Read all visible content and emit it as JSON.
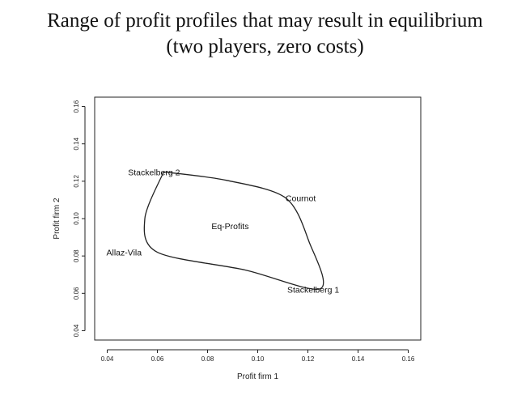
{
  "title_line1": "Range of profit profiles that may result in equilibrium",
  "title_line2": "(two players, zero costs)",
  "chart_data": {
    "type": "line",
    "title": "Range of profit profiles that may result in equilibrium (two players, zero costs)",
    "xlabel": "Profit firm 1",
    "ylabel": "Profit firm 2",
    "xlim": [
      0.035,
      0.165
    ],
    "ylim": [
      0.035,
      0.165
    ],
    "xticks": [
      "0.04",
      "0.06",
      "0.08",
      "0.10",
      "0.12",
      "0.14",
      "0.16"
    ],
    "yticks": [
      "0.04",
      "0.06",
      "0.08",
      "0.10",
      "0.12",
      "0.14",
      "0.16"
    ],
    "xtick_values": [
      0.04,
      0.06,
      0.08,
      0.1,
      0.12,
      0.14,
      0.16
    ],
    "ytick_values": [
      0.04,
      0.06,
      0.08,
      0.1,
      0.12,
      0.14,
      0.16
    ],
    "grid": false,
    "boundary": [
      {
        "x": 0.0625,
        "y": 0.125
      },
      {
        "x": 0.0875,
        "y": 0.1205
      },
      {
        "x": 0.1111,
        "y": 0.1111
      },
      {
        "x": 0.1205,
        "y": 0.0875
      },
      {
        "x": 0.125,
        "y": 0.0625
      },
      {
        "x": 0.095,
        "y": 0.0725
      },
      {
        "x": 0.06,
        "y": 0.082
      },
      {
        "x": 0.055,
        "y": 0.1
      },
      {
        "x": 0.0625,
        "y": 0.125
      }
    ],
    "points": [
      {
        "name": "Stackelberg 2",
        "x": 0.0625,
        "y": 0.125
      },
      {
        "name": "Cournot",
        "x": 0.1111,
        "y": 0.1111
      },
      {
        "name": "Allaz-Vila",
        "x": 0.06,
        "y": 0.082
      },
      {
        "name": "Stackelberg 1",
        "x": 0.125,
        "y": 0.0625
      }
    ],
    "annotations": [
      {
        "text": "Eq-Profits",
        "x": 0.089,
        "y": 0.096
      }
    ]
  }
}
